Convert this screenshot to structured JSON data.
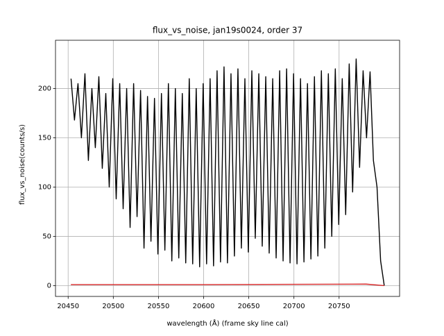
{
  "chart_data": {
    "type": "line",
    "title": "flux_vs_noise, jan19s0024, order 37",
    "xlabel": "wavelength (Å) (frame sky line cal)",
    "ylabel": "flux_vs_noise(counts/s)",
    "xlim": [
      20436,
      20817
    ],
    "ylim": [
      -11,
      249
    ],
    "xticks": [
      20450,
      20500,
      20550,
      20600,
      20650,
      20700,
      20750
    ],
    "yticks": [
      0,
      50,
      100,
      150,
      200
    ],
    "grid": true,
    "series": [
      {
        "color": "#000000",
        "x": [
          20453.2,
          20457.0,
          20460.9,
          20464.7,
          20468.6,
          20472.4,
          20476.3,
          20480.1,
          20484.0,
          20487.8,
          20491.7,
          20495.5,
          20499.4,
          20503.2,
          20507.1,
          20510.9,
          20514.8,
          20518.6,
          20522.5,
          20526.3,
          20530.2,
          20534.0,
          20537.9,
          20541.7,
          20545.6,
          20549.4,
          20553.3,
          20557.1,
          20561.0,
          20564.8,
          20568.7,
          20572.5,
          20576.4,
          20580.2,
          20584.1,
          20587.9,
          20591.8,
          20595.6,
          20599.5,
          20603.3,
          20607.2,
          20611.0,
          20614.9,
          20618.7,
          20622.6,
          20626.4,
          20630.3,
          20634.1,
          20638.0,
          20641.8,
          20645.7,
          20649.5,
          20653.4,
          20657.2,
          20661.1,
          20664.9,
          20668.8,
          20672.6,
          20676.5,
          20680.3,
          20684.2,
          20688.0,
          20691.9,
          20695.7,
          20699.6,
          20703.4,
          20707.3,
          20711.1,
          20715.0,
          20718.8,
          20722.7,
          20726.5,
          20730.4,
          20734.2,
          20738.1,
          20741.9,
          20745.8,
          20749.6,
          20753.5,
          20757.3,
          20761.2,
          20765.0,
          20768.9,
          20772.7,
          20776.6,
          20780.4,
          20784.3,
          20788,
          20792,
          20796,
          20800
        ],
        "values": [
          210,
          168,
          205,
          150,
          215,
          127,
          200,
          140,
          212,
          119,
          195,
          100,
          210,
          88,
          205,
          78,
          200,
          59,
          205,
          70,
          198,
          38,
          192,
          45,
          190,
          32,
          195,
          36,
          205,
          25,
          200,
          28,
          195,
          23,
          210,
          22,
          200,
          19,
          205,
          22,
          210,
          20,
          218,
          24,
          222,
          23,
          215,
          30,
          220,
          38,
          210,
          34,
          218,
          48,
          215,
          40,
          212,
          33,
          210,
          28,
          218,
          25,
          220,
          23,
          215,
          22,
          210,
          24,
          205,
          27,
          212,
          30,
          218,
          38,
          215,
          50,
          220,
          62,
          210,
          72,
          225,
          95,
          230,
          120,
          218,
          150,
          217,
          127,
          100,
          25,
          0
        ]
      },
      {
        "color": "#d62728",
        "x": [
          20453,
          20600,
          20780,
          20800
        ],
        "values": [
          1,
          1,
          1.5,
          0
        ]
      }
    ]
  }
}
